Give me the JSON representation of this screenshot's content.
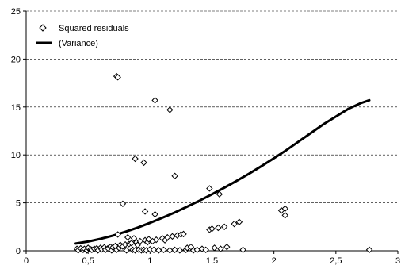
{
  "chart_data": {
    "type": "scatter",
    "title": "",
    "xlabel": "",
    "ylabel": "",
    "xlim": [
      0,
      3
    ],
    "ylim": [
      0,
      25
    ],
    "x_ticks": [
      0,
      0.5,
      1,
      1.5,
      2,
      2.5,
      3
    ],
    "x_tick_labels": [
      "0",
      "0,5",
      "1",
      "1,5",
      "2",
      "2,5",
      "3"
    ],
    "y_ticks": [
      0,
      5,
      10,
      15,
      20,
      25
    ],
    "y_tick_labels": [
      "0",
      "5",
      "10",
      "15",
      "20",
      "25"
    ],
    "grid": "horizontal dashed",
    "legend_position": "top-left",
    "series": [
      {
        "name": "Squared residuals",
        "kind": "scatter",
        "marker": "diamond",
        "color": "#000000",
        "points": [
          [
            0.41,
            0.2
          ],
          [
            0.42,
            0.05
          ],
          [
            0.44,
            0.25
          ],
          [
            0.46,
            0.1
          ],
          [
            0.47,
            0.2
          ],
          [
            0.49,
            0.05
          ],
          [
            0.5,
            0.3
          ],
          [
            0.52,
            0.15
          ],
          [
            0.53,
            0.1
          ],
          [
            0.55,
            0.2
          ],
          [
            0.57,
            0.25
          ],
          [
            0.58,
            0.05
          ],
          [
            0.6,
            0.3
          ],
          [
            0.61,
            0.15
          ],
          [
            0.63,
            0.35
          ],
          [
            0.64,
            0.1
          ],
          [
            0.66,
            0.25
          ],
          [
            0.68,
            0.4
          ],
          [
            0.69,
            0.05
          ],
          [
            0.7,
            0.35
          ],
          [
            0.72,
            0.5
          ],
          [
            0.73,
            0.1
          ],
          [
            0.74,
            1.7
          ],
          [
            0.75,
            0.3
          ],
          [
            0.76,
            0.6
          ],
          [
            0.78,
            0.45
          ],
          [
            0.8,
            0.65
          ],
          [
            0.81,
            0.05
          ],
          [
            0.82,
            1.4
          ],
          [
            0.83,
            0.7
          ],
          [
            0.85,
            0.8
          ],
          [
            0.86,
            0.1
          ],
          [
            0.87,
            1.3
          ],
          [
            0.88,
            0.05
          ],
          [
            0.89,
            0.9
          ],
          [
            0.9,
            0.6
          ],
          [
            0.91,
            0.1
          ],
          [
            0.92,
            1.0
          ],
          [
            0.93,
            0.05
          ],
          [
            0.95,
            0.1
          ],
          [
            0.96,
            1.1
          ],
          [
            0.97,
            0.05
          ],
          [
            0.98,
            0.9
          ],
          [
            0.99,
            1.2
          ],
          [
            1.0,
            0.15
          ],
          [
            1.02,
            1.0
          ],
          [
            1.03,
            0.1
          ],
          [
            1.05,
            1.15
          ],
          [
            1.07,
            0.05
          ],
          [
            1.1,
            1.3
          ],
          [
            1.11,
            0.1
          ],
          [
            1.12,
            1.1
          ],
          [
            1.14,
            1.4
          ],
          [
            1.16,
            0.05
          ],
          [
            1.18,
            1.5
          ],
          [
            1.2,
            0.1
          ],
          [
            1.22,
            1.6
          ],
          [
            1.24,
            0.05
          ],
          [
            1.25,
            1.7
          ],
          [
            1.27,
            1.75
          ],
          [
            1.29,
            0.1
          ],
          [
            1.3,
            0.3
          ],
          [
            1.33,
            0.4
          ],
          [
            1.35,
            0.05
          ],
          [
            1.38,
            0.1
          ],
          [
            1.42,
            0.2
          ],
          [
            1.45,
            0.1
          ],
          [
            1.48,
            2.2
          ],
          [
            1.5,
            2.3
          ],
          [
            1.52,
            0.3
          ],
          [
            1.55,
            2.4
          ],
          [
            1.57,
            0.2
          ],
          [
            1.6,
            2.5
          ],
          [
            1.62,
            0.4
          ],
          [
            1.68,
            2.8
          ],
          [
            1.72,
            3.0
          ],
          [
            1.75,
            0.1
          ],
          [
            0.73,
            18.2
          ],
          [
            0.74,
            18.1
          ],
          [
            0.78,
            4.9
          ],
          [
            0.88,
            9.6
          ],
          [
            0.95,
            9.2
          ],
          [
            0.96,
            4.1
          ],
          [
            1.04,
            15.7
          ],
          [
            1.04,
            3.8
          ],
          [
            1.16,
            14.7
          ],
          [
            1.2,
            7.8
          ],
          [
            1.48,
            6.5
          ],
          [
            1.56,
            5.9
          ],
          [
            2.06,
            4.2
          ],
          [
            2.09,
            4.4
          ],
          [
            2.09,
            3.7
          ],
          [
            2.77,
            0.1
          ]
        ]
      },
      {
        "name": "(Variance)",
        "kind": "line",
        "color": "#000000",
        "x": [
          0.4,
          0.5,
          0.6,
          0.7,
          0.8,
          0.9,
          1.0,
          1.1,
          1.2,
          1.3,
          1.4,
          1.5,
          1.6,
          1.7,
          1.8,
          1.9,
          2.0,
          2.1,
          2.2,
          2.3,
          2.4,
          2.5,
          2.6,
          2.7,
          2.77
        ],
        "y": [
          0.75,
          0.96,
          1.24,
          1.58,
          1.98,
          2.42,
          2.91,
          3.44,
          4.0,
          4.6,
          5.23,
          5.89,
          6.58,
          7.3,
          8.05,
          8.83,
          9.65,
          10.5,
          11.4,
          12.3,
          13.2,
          14.0,
          14.8,
          15.4,
          15.7
        ]
      }
    ]
  }
}
